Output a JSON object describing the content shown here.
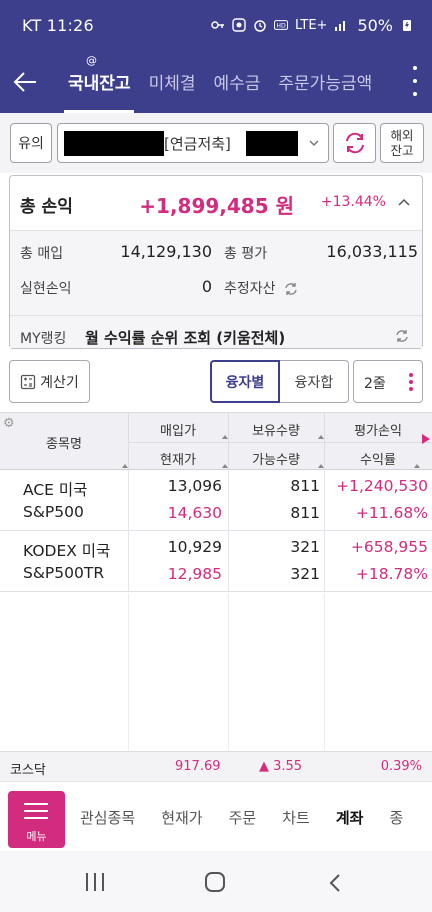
{
  "status": {
    "carrier_time": "KT 11:26",
    "network": "LTE+",
    "battery": "50%"
  },
  "header": {
    "tabs": [
      {
        "label": "국내잔고",
        "active": true
      },
      {
        "label": "미체결",
        "active": false
      },
      {
        "label": "예수금",
        "active": false
      },
      {
        "label": "주문가능금액",
        "active": false
      }
    ],
    "mark": "@"
  },
  "account": {
    "warn_label": "유의",
    "type_label": "[연금저축]",
    "overseas_label_1": "해외",
    "overseas_label_2": "잔고"
  },
  "summary": {
    "total_pl_label": "총 손익",
    "total_pl_amount": "+1,899,485 원",
    "total_pl_pct": "+13.44%",
    "buy_label": "총 매입",
    "buy_value": "14,129,130",
    "eval_label": "총 평가",
    "eval_value": "16,033,115",
    "realized_label": "실현손익",
    "realized_value": "0",
    "est_label": "추정자산",
    "rank_label": "MY랭킹",
    "rank_text": "월 수익률 순위 조회 (키움전체)"
  },
  "toolbar": {
    "calc_label": "계산기",
    "seg_a": "융자별",
    "seg_b": "융자합",
    "rows_label": "2줄"
  },
  "table": {
    "headers": {
      "name": "종목명",
      "buy_price": "매입가",
      "cur_price": "현재가",
      "hold_qty": "보유수량",
      "avail_qty": "가능수량",
      "eval_pl": "평가손익",
      "return_rate": "수익률"
    },
    "rows": [
      {
        "name": "ACE 미국S&P500",
        "buy_price": "13,096",
        "cur_price": "14,630",
        "hold_qty": "811",
        "avail_qty": "811",
        "eval_pl": "+1,240,530",
        "return_rate": "+11.68%"
      },
      {
        "name": "KODEX 미국S&P500TR",
        "buy_price": "10,929",
        "cur_price": "12,985",
        "hold_qty": "321",
        "avail_qty": "321",
        "eval_pl": "+658,955",
        "return_rate": "+18.78%"
      }
    ]
  },
  "ticker": {
    "name": "코스닥",
    "value": "917.69",
    "change": "▲ 3.55",
    "pct": "0.39%"
  },
  "bottom_menu": {
    "menu_label": "메뉴",
    "items": [
      {
        "label": "관심종목",
        "active": false
      },
      {
        "label": "현재가",
        "active": false
      },
      {
        "label": "주문",
        "active": false
      },
      {
        "label": "차트",
        "active": false
      },
      {
        "label": "계좌",
        "active": true
      },
      {
        "label": "종",
        "active": false
      }
    ]
  },
  "colors": {
    "primary": "#3d3f8c",
    "positive": "#d12c7e"
  }
}
